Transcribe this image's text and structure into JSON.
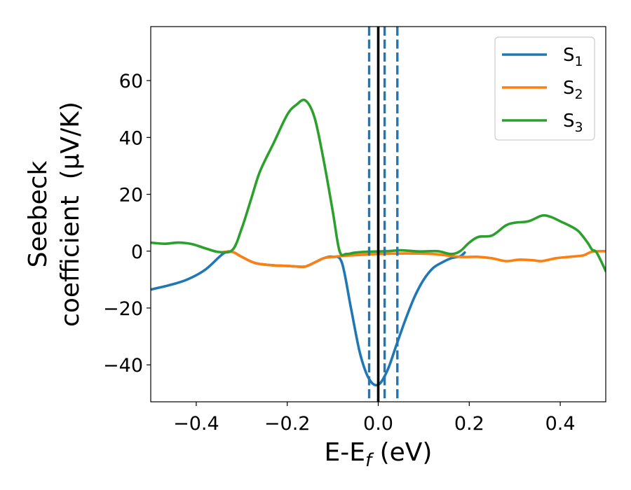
{
  "chart_data": {
    "type": "line",
    "xlabel_main": "E-E",
    "xlabel_sub": "f",
    "xlabel_unit": " (eV)",
    "ylabel_line1": "Seebeck",
    "ylabel_line2": "coefficient  (μV/K)",
    "xlim": [
      -0.5,
      0.5
    ],
    "ylim": [
      -53,
      79
    ],
    "xticks": [
      {
        "value": -0.4,
        "label": "−0.4"
      },
      {
        "value": -0.2,
        "label": "−0.2"
      },
      {
        "value": 0.0,
        "label": "0.0"
      },
      {
        "value": 0.2,
        "label": "0.2"
      },
      {
        "value": 0.4,
        "label": "0.4"
      }
    ],
    "yticks": [
      {
        "value": -40,
        "label": "−40"
      },
      {
        "value": -20,
        "label": "−20"
      },
      {
        "value": 0,
        "label": "0"
      },
      {
        "value": 20,
        "label": "20"
      },
      {
        "value": 40,
        "label": "40"
      },
      {
        "value": 60,
        "label": "60"
      }
    ],
    "grid": false,
    "legend_position": "top-right",
    "series": [
      {
        "name_main": "S",
        "name_sub": "1",
        "color": "#1f77b4",
        "points": [
          [
            -0.5,
            -13.5
          ],
          [
            -0.46,
            -12
          ],
          [
            -0.42,
            -10
          ],
          [
            -0.38,
            -6.5
          ],
          [
            -0.34,
            -0.8
          ],
          [
            -0.32,
            -0.3
          ],
          [
            -0.3,
            -2
          ],
          [
            -0.27,
            -4.2
          ],
          [
            -0.23,
            -5
          ],
          [
            -0.2,
            -5.2
          ],
          [
            -0.18,
            -5.4
          ],
          [
            -0.16,
            -5.4
          ],
          [
            -0.14,
            -4
          ],
          [
            -0.12,
            -2.5
          ],
          [
            -0.1,
            -2
          ],
          [
            -0.08,
            -4
          ],
          [
            -0.06,
            -20
          ],
          [
            -0.04,
            -36
          ],
          [
            -0.02,
            -45
          ],
          [
            0.0,
            -47
          ],
          [
            0.02,
            -42
          ],
          [
            0.04,
            -33
          ],
          [
            0.06,
            -24
          ],
          [
            0.08,
            -16
          ],
          [
            0.1,
            -10
          ],
          [
            0.12,
            -6
          ],
          [
            0.14,
            -4
          ],
          [
            0.16,
            -2.5
          ],
          [
            0.18,
            -1.8
          ],
          [
            0.19,
            -0.5
          ]
        ]
      },
      {
        "name_main": "S",
        "name_sub": "2",
        "color": "#ff7f0e",
        "points": [
          [
            -0.34,
            -0.3
          ],
          [
            -0.32,
            -0.3
          ],
          [
            -0.3,
            -2
          ],
          [
            -0.27,
            -4.2
          ],
          [
            -0.23,
            -5
          ],
          [
            -0.2,
            -5.2
          ],
          [
            -0.18,
            -5.4
          ],
          [
            -0.16,
            -5.4
          ],
          [
            -0.14,
            -4
          ],
          [
            -0.12,
            -2.5
          ],
          [
            -0.1,
            -2
          ],
          [
            -0.06,
            -1.5
          ],
          [
            0.0,
            -1
          ],
          [
            0.06,
            -0.8
          ],
          [
            0.12,
            -1
          ],
          [
            0.18,
            -2
          ],
          [
            0.22,
            -2
          ],
          [
            0.25,
            -2.5
          ],
          [
            0.28,
            -3.5
          ],
          [
            0.31,
            -3
          ],
          [
            0.34,
            -3.2
          ],
          [
            0.36,
            -3.5
          ],
          [
            0.39,
            -2.5
          ],
          [
            0.42,
            -2
          ],
          [
            0.45,
            -1.5
          ],
          [
            0.47,
            -0.2
          ],
          [
            0.5,
            0
          ]
        ]
      },
      {
        "name_main": "S",
        "name_sub": "3",
        "color": "#2ca02c",
        "points": [
          [
            -0.5,
            3
          ],
          [
            -0.47,
            2.6
          ],
          [
            -0.44,
            3
          ],
          [
            -0.41,
            2.5
          ],
          [
            -0.38,
            1
          ],
          [
            -0.35,
            -0.3
          ],
          [
            -0.32,
            0.5
          ],
          [
            -0.3,
            8
          ],
          [
            -0.28,
            18
          ],
          [
            -0.26,
            28
          ],
          [
            -0.23,
            38
          ],
          [
            -0.2,
            48
          ],
          [
            -0.18,
            51.5
          ],
          [
            -0.16,
            53
          ],
          [
            -0.14,
            47
          ],
          [
            -0.12,
            32
          ],
          [
            -0.1,
            14
          ],
          [
            -0.085,
            0
          ],
          [
            -0.07,
            -1
          ],
          [
            -0.05,
            -0.5
          ],
          [
            -0.02,
            -0.2
          ],
          [
            0.02,
            0
          ],
          [
            0.05,
            0.3
          ],
          [
            0.09,
            -0.1
          ],
          [
            0.13,
            0
          ],
          [
            0.16,
            -1
          ],
          [
            0.18,
            0
          ],
          [
            0.2,
            3
          ],
          [
            0.22,
            5
          ],
          [
            0.25,
            5.5
          ],
          [
            0.28,
            9
          ],
          [
            0.3,
            10
          ],
          [
            0.33,
            10.5
          ],
          [
            0.36,
            12.5
          ],
          [
            0.38,
            12
          ],
          [
            0.4,
            10.5
          ],
          [
            0.42,
            9
          ],
          [
            0.44,
            7
          ],
          [
            0.46,
            3
          ],
          [
            0.47,
            0.5
          ],
          [
            0.48,
            -0.5
          ],
          [
            0.5,
            -7
          ]
        ]
      }
    ],
    "vertical_lines": [
      {
        "x": 0.0,
        "style": "solid",
        "color": "#000000"
      },
      {
        "x": -0.02,
        "style": "dashed",
        "color": "#1f77b4"
      },
      {
        "x": 0.014,
        "style": "dashed",
        "color": "#1f77b4"
      },
      {
        "x": 0.042,
        "style": "dashed",
        "color": "#1f77b4"
      }
    ]
  }
}
